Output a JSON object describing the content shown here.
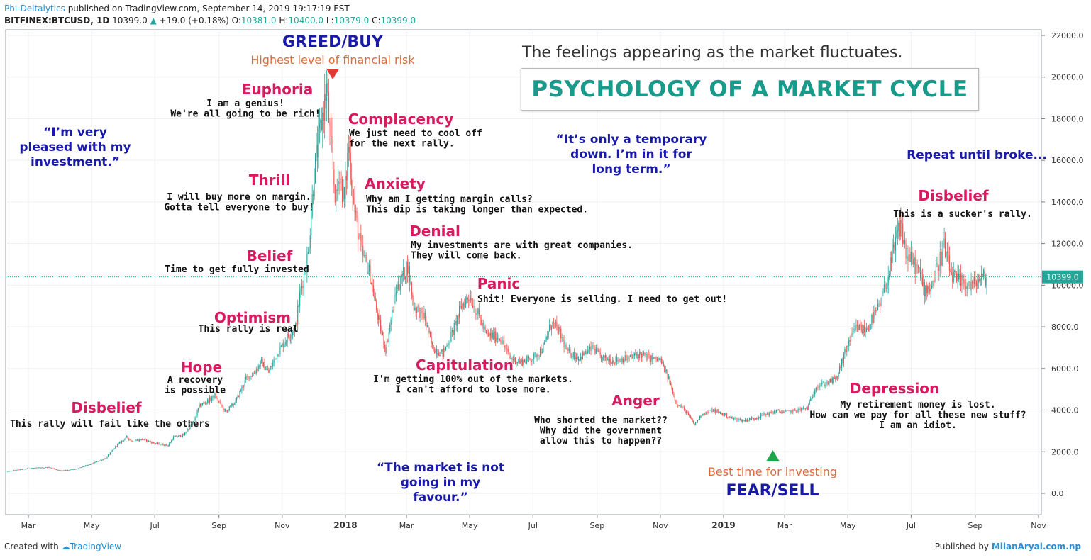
{
  "header": {
    "publisher": "Phi-Deltalytics",
    "published_text": "published on TradingView.com, September 14, 2019 19:17:19 EST",
    "symbol": "BITFINEX:BTCUSD, 1D",
    "last": "10399.0",
    "change": "+19.0 (+0.18%)",
    "o_label": "O:",
    "o_value": "10381.0",
    "h_label": "H:",
    "h_value": "10400.0",
    "l_label": "L:",
    "l_value": "10379.0",
    "c_label": "C:",
    "c_value": "10399.0"
  },
  "title": "PSYCHOLOGY OF A MARKET CYCLE",
  "subtitle": "The feelings appearing as the market fluctuates.",
  "footer": {
    "created_with": "Created with",
    "tv": "TradingView",
    "published_by": "Published by",
    "site": "MilanAryal.com.np"
  },
  "price_label": "10399.0",
  "colors": {
    "stage": "#d81b60",
    "quote": "#1a1aa8",
    "risk": "#e06a3a",
    "buy": "#1a1aa8",
    "up_candle": "#26a69a",
    "down_candle": "#ef5350",
    "title": "#1a9a8a"
  },
  "annotations": {
    "greed": "GREED/BUY",
    "risk": "Highest level of financial risk",
    "fear": "FEAR/SELL",
    "best_time": "Best time for investing",
    "stages": [
      {
        "name": "Disbelief",
        "lines": [
          "This rally will fail like the others"
        ]
      },
      {
        "name": "Hope",
        "lines": [
          "A recovery",
          "is possible"
        ]
      },
      {
        "name": "Optimism",
        "lines": [
          "This rally is real"
        ]
      },
      {
        "name": "Belief",
        "lines": [
          "Time to get fully invested"
        ]
      },
      {
        "name": "Thrill",
        "lines": [
          "I will buy more on margin.",
          "Gotta tell everyone to buy!"
        ]
      },
      {
        "name": "Euphoria",
        "lines": [
          "I am a genius!",
          "We're all going to be rich!"
        ]
      },
      {
        "name": "Complacency",
        "lines": [
          "We just need to cool off",
          "for the next rally."
        ]
      },
      {
        "name": "Anxiety",
        "lines": [
          "Why am I getting margin calls?",
          "This dip is taking longer than expected."
        ]
      },
      {
        "name": "Denial",
        "lines": [
          "My investments are with great companies.",
          "They will come back."
        ]
      },
      {
        "name": "Panic",
        "lines": [
          "Shit! Everyone is selling. I need to get out!"
        ]
      },
      {
        "name": "Capitulation",
        "lines": [
          "I'm getting 100% out of the markets.",
          "I can't afford to lose more."
        ]
      },
      {
        "name": "Anger",
        "lines": [
          "Who shorted the market??",
          "Why did the government",
          "allow this to happen??"
        ]
      },
      {
        "name": "Depression",
        "lines": [
          "My retirement money is lost.",
          "How can we pay for all these new stuff?",
          "I am an idiot."
        ]
      },
      {
        "name": "Disbelief",
        "lines": [
          "This is a sucker's rally."
        ]
      }
    ],
    "quotes": [
      {
        "lines": [
          "“I’m very",
          "pleased with my",
          "investment.”"
        ]
      },
      {
        "lines": [
          "“It’s only a temporary",
          "down. I’m in it for",
          "long term.”"
        ]
      },
      {
        "lines": [
          "“The market is not",
          "going in my",
          "favour.”"
        ]
      },
      {
        "lines": [
          "Repeat until broke..."
        ]
      }
    ]
  },
  "chart_data": {
    "type": "candlestick",
    "symbol": "BITFINEX:BTCUSD",
    "interval": "1D",
    "y_ticks": [
      0,
      2000,
      4000,
      6000,
      8000,
      10000,
      12000,
      14000,
      16000,
      18000,
      20000,
      22000
    ],
    "y_tick_labels": [
      "0.0",
      "2000.0",
      "4000.0",
      "6000.0",
      "8000.0",
      "10000.0",
      "12000.0",
      "14000.0",
      "16000.0",
      "18000.0",
      "20000.0",
      "22000.0"
    ],
    "ylim": [
      -1000,
      22500
    ],
    "x_ticks": [
      "Mar",
      "May",
      "Jul",
      "Sep",
      "Nov",
      "2018",
      "Mar",
      "May",
      "Jul",
      "Sep",
      "Nov",
      "2019",
      "Mar",
      "May",
      "Jul",
      "Sep",
      "Nov"
    ],
    "x_tick_bold": [
      false,
      false,
      false,
      false,
      false,
      true,
      false,
      false,
      false,
      false,
      false,
      true,
      false,
      false,
      false,
      false,
      false
    ],
    "x_tick_days": [
      0,
      61,
      122,
      184,
      245,
      306,
      365,
      426,
      487,
      549,
      610,
      671,
      730,
      791,
      852,
      914,
      975
    ],
    "x_start": "2017-03-01",
    "last_price": 10399.0,
    "path": [
      [
        -20,
        1050
      ],
      [
        0,
        1200
      ],
      [
        20,
        1250
      ],
      [
        30,
        1100
      ],
      [
        45,
        1150
      ],
      [
        60,
        1400
      ],
      [
        75,
        1700
      ],
      [
        85,
        2300
      ],
      [
        95,
        2700
      ],
      [
        100,
        2500
      ],
      [
        110,
        2600
      ],
      [
        122,
        2400
      ],
      [
        135,
        2300
      ],
      [
        140,
        2700
      ],
      [
        150,
        2800
      ],
      [
        160,
        3500
      ],
      [
        165,
        4200
      ],
      [
        172,
        4400
      ],
      [
        180,
        4700
      ],
      [
        190,
        3900
      ],
      [
        200,
        4400
      ],
      [
        210,
        5500
      ],
      [
        218,
        5800
      ],
      [
        225,
        6300
      ],
      [
        232,
        5800
      ],
      [
        240,
        6700
      ],
      [
        250,
        7500
      ],
      [
        258,
        8000
      ],
      [
        262,
        9500
      ],
      [
        270,
        11500
      ],
      [
        276,
        15500
      ],
      [
        282,
        17500
      ],
      [
        288,
        19500
      ],
      [
        292,
        16500
      ],
      [
        297,
        14000
      ],
      [
        300,
        15500
      ],
      [
        305,
        14000
      ],
      [
        309,
        16800
      ],
      [
        315,
        13500
      ],
      [
        322,
        11500
      ],
      [
        330,
        10500
      ],
      [
        337,
        8500
      ],
      [
        345,
        6900
      ],
      [
        355,
        9800
      ],
      [
        362,
        10500
      ],
      [
        366,
        11000
      ],
      [
        372,
        9000
      ],
      [
        382,
        8500
      ],
      [
        390,
        7000
      ],
      [
        400,
        6700
      ],
      [
        410,
        7800
      ],
      [
        418,
        9000
      ],
      [
        426,
        9500
      ],
      [
        433,
        8700
      ],
      [
        442,
        7600
      ],
      [
        455,
        7500
      ],
      [
        465,
        6500
      ],
      [
        475,
        6300
      ],
      [
        487,
        6500
      ],
      [
        497,
        7000
      ],
      [
        505,
        8200
      ],
      [
        512,
        7800
      ],
      [
        520,
        6800
      ],
      [
        532,
        6500
      ],
      [
        545,
        7000
      ],
      [
        553,
        6500
      ],
      [
        565,
        6400
      ],
      [
        580,
        6500
      ],
      [
        590,
        6700
      ],
      [
        600,
        6500
      ],
      [
        610,
        6400
      ],
      [
        618,
        5500
      ],
      [
        625,
        4400
      ],
      [
        635,
        3900
      ],
      [
        643,
        3300
      ],
      [
        650,
        3800
      ],
      [
        660,
        4000
      ],
      [
        671,
        3800
      ],
      [
        680,
        3600
      ],
      [
        690,
        3500
      ],
      [
        700,
        3600
      ],
      [
        712,
        3800
      ],
      [
        722,
        3950
      ],
      [
        730,
        3900
      ],
      [
        742,
        4000
      ],
      [
        752,
        4100
      ],
      [
        760,
        5100
      ],
      [
        770,
        5300
      ],
      [
        780,
        5500
      ],
      [
        791,
        7200
      ],
      [
        800,
        8000
      ],
      [
        808,
        7800
      ],
      [
        816,
        8500
      ],
      [
        822,
        9000
      ],
      [
        830,
        10500
      ],
      [
        837,
        12000
      ],
      [
        842,
        13000
      ],
      [
        847,
        11500
      ],
      [
        852,
        11200
      ],
      [
        858,
        10800
      ],
      [
        865,
        9800
      ],
      [
        872,
        10000
      ],
      [
        878,
        11000
      ],
      [
        884,
        11800
      ],
      [
        890,
        10600
      ],
      [
        896,
        10200
      ],
      [
        905,
        10100
      ],
      [
        912,
        10000
      ],
      [
        918,
        10300
      ],
      [
        925,
        10399
      ]
    ]
  }
}
